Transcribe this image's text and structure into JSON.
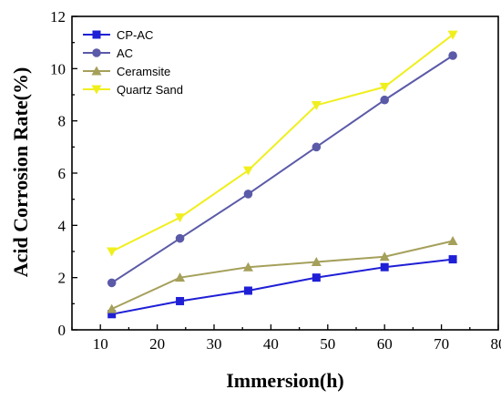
{
  "chart_data": {
    "type": "line",
    "xlabel": "Immersion(h)",
    "ylabel": "Acid Corrosion Rate(%)",
    "xlim": [
      5,
      80
    ],
    "ylim": [
      0,
      12
    ],
    "xticks": [
      10,
      20,
      30,
      40,
      50,
      60,
      70,
      80
    ],
    "yticks": [
      0,
      2,
      4,
      6,
      8,
      10,
      12
    ],
    "grid": false,
    "legend_position": "top-left",
    "x": [
      12,
      24,
      36,
      48,
      60,
      72
    ],
    "series": [
      {
        "name": "CP-AC",
        "color": "#1f1fd6",
        "marker": "square",
        "values": [
          0.6,
          1.1,
          1.5,
          2.0,
          2.4,
          2.7
        ]
      },
      {
        "name": "AC",
        "color": "#5b5aa8",
        "marker": "circle",
        "values": [
          1.8,
          3.5,
          5.2,
          7.0,
          8.8,
          10.5
        ]
      },
      {
        "name": "Ceramsite",
        "color": "#a5a05a",
        "marker": "triangle-up",
        "values": [
          0.8,
          2.0,
          2.4,
          2.6,
          2.8,
          3.4
        ]
      },
      {
        "name": "Quartz Sand",
        "color": "#f0ef1e",
        "marker": "triangle-down",
        "values": [
          3.0,
          4.3,
          6.1,
          8.6,
          9.3,
          11.3
        ]
      }
    ]
  }
}
